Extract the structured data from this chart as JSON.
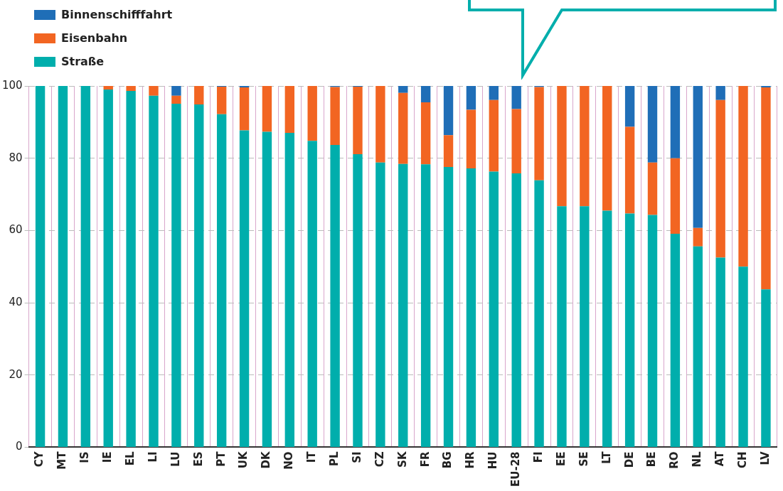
{
  "chart_data": {
    "type": "bar",
    "stacked": true,
    "legend": "top left",
    "grid": true,
    "categories": [
      "CY",
      "MT",
      "IS",
      "IE",
      "EL",
      "LI",
      "LU",
      "ES",
      "PT",
      "UK",
      "DK",
      "NO",
      "IT",
      "PL",
      "SI",
      "CZ",
      "SK",
      "FR",
      "BG",
      "HR",
      "HU",
      "EU-28",
      "FI",
      "EE",
      "SE",
      "LT",
      "DE",
      "BE",
      "RO",
      "NL",
      "AT",
      "CH",
      "LV"
    ],
    "ylim": [
      0,
      100
    ],
    "yticks": [
      0,
      20,
      40,
      60,
      80,
      100
    ],
    "series": [
      {
        "name": "Straße",
        "color": "#00aeac",
        "values": [
          100,
          100,
          100,
          99,
          98.6,
          97.3,
          95.1,
          94.9,
          92.2,
          87.7,
          87.3,
          87,
          84.8,
          83.7,
          81.1,
          78.8,
          78.4,
          78.3,
          77.6,
          77.2,
          76.3,
          75.8,
          73.9,
          66.7,
          66.7,
          65.5,
          64.7,
          64.3,
          59.1,
          55.6,
          52.5,
          50,
          43.7
        ]
      },
      {
        "name": "Eisenbahn",
        "color": "#f26522",
        "values": [
          0,
          0,
          0,
          1,
          1.4,
          2.7,
          2.2,
          5.1,
          7.6,
          11.9,
          12.7,
          13,
          15.2,
          16,
          18.7,
          21.2,
          19.7,
          17.2,
          8.8,
          16.2,
          19.8,
          17.8,
          25.8,
          33.3,
          33.3,
          34.5,
          24,
          14.5,
          20.9,
          5.1,
          43.6,
          50,
          55.9
        ]
      },
      {
        "name": "Binnenschifffahrt",
        "color": "#1f6eb7",
        "values": [
          0,
          0,
          0,
          0,
          0,
          0,
          2.7,
          0,
          0.2,
          0.4,
          0,
          0,
          0,
          0.3,
          0.2,
          0,
          1.9,
          4.5,
          13.6,
          6.6,
          3.9,
          6.4,
          0.3,
          0,
          0,
          0,
          11.3,
          21.2,
          20,
          39.3,
          3.9,
          0,
          0.4
        ]
      }
    ]
  }
}
